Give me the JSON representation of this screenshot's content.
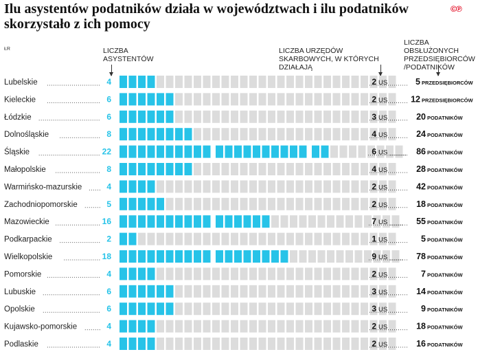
{
  "title": "Ilu asystentów podatników działa w województwach i ilu podatników skorzystało z ich pomocy",
  "source": "ŁR",
  "logo": "©℗",
  "headers": {
    "assistants": "LICZBA ASYSTENTÓW",
    "offices": "LICZBA URZĘDÓW SKARBOWYCH, W KTÓRYCH DZIAŁAJĄ",
    "served": "LICZBA OBSŁUŻONYCH PRZEDSIĘBIORCÓW /PODATNIKÓW"
  },
  "office_unit": "US",
  "colors": {
    "filled": "#27c3e8",
    "empty": "#dcdcdc",
    "number": "#27c3e8"
  },
  "chart_data": {
    "type": "table",
    "title": "Ilu asystentów podatników działa w województwach i ilu podatników skorzystało z ich pomocy",
    "columns": [
      "LICZBA ASYSTENTÓW",
      "LICZBA URZĘDÓW SKARBOWYCH, W KTÓRYCH DZIAŁAJĄ",
      "LICZBA OBSŁUŻONYCH PRZEDSIĘBIORCÓW /PODATNIKÓW"
    ],
    "rows": [
      {
        "region": "Lubelskie",
        "assistants": 4,
        "offices": 2,
        "served": 5,
        "served_unit": "PRZEDSIĘBIORCÓW",
        "groups": [
          4
        ]
      },
      {
        "region": "Kieleckie",
        "assistants": 6,
        "offices": 2,
        "served": 12,
        "served_unit": "PRZEDSIĘBIORCÓW",
        "groups": [
          6
        ]
      },
      {
        "region": "Łódzkie",
        "assistants": 6,
        "offices": 3,
        "served": 20,
        "served_unit": "PODATNIKÓW",
        "groups": [
          6
        ]
      },
      {
        "region": "Dolnośląskie",
        "assistants": 8,
        "offices": 4,
        "served": 24,
        "served_unit": "PODATNIKÓW",
        "groups": [
          8
        ]
      },
      {
        "region": "Śląskie",
        "assistants": 22,
        "offices": 6,
        "served": 86,
        "served_unit": "PODATNIKÓW",
        "groups": [
          10,
          10,
          2
        ]
      },
      {
        "region": "Małopolskie",
        "assistants": 8,
        "offices": 4,
        "served": 28,
        "served_unit": "PODATNIKÓW",
        "groups": [
          8
        ]
      },
      {
        "region": "Warmińsko-mazurskie",
        "assistants": 4,
        "offices": 2,
        "served": 42,
        "served_unit": "PODATNIKÓW",
        "groups": [
          4
        ]
      },
      {
        "region": "Zachodniopomorskie",
        "assistants": 5,
        "offices": 2,
        "served": 18,
        "served_unit": "PODATNIKÓW",
        "groups": [
          5
        ]
      },
      {
        "region": "Mazowieckie",
        "assistants": 16,
        "offices": 7,
        "served": 55,
        "served_unit": "PODATNIKÓW",
        "groups": [
          10,
          6
        ]
      },
      {
        "region": "Podkarpackie",
        "assistants": 2,
        "offices": 1,
        "served": 5,
        "served_unit": "PODATNIKÓW",
        "groups": [
          2
        ]
      },
      {
        "region": "Wielkopolskie",
        "assistants": 18,
        "offices": 9,
        "served": 78,
        "served_unit": "PODATNIKÓW",
        "groups": [
          10,
          8
        ]
      },
      {
        "region": "Pomorskie",
        "assistants": 4,
        "offices": 2,
        "served": 7,
        "served_unit": "PODATNIKÓW",
        "groups": [
          4
        ]
      },
      {
        "region": "Lubuskie",
        "assistants": 6,
        "offices": 3,
        "served": 14,
        "served_unit": "PODATNIKÓW",
        "groups": [
          6
        ]
      },
      {
        "region": "Opolskie",
        "assistants": 6,
        "offices": 3,
        "served": 9,
        "served_unit": "PODATNIKÓW",
        "groups": [
          6
        ]
      },
      {
        "region": "Kujawsko-pomorskie",
        "assistants": 4,
        "offices": 2,
        "served": 18,
        "served_unit": "PODATNIKÓW",
        "groups": [
          4
        ]
      },
      {
        "region": "Podlaskie",
        "assistants": 4,
        "offices": 2,
        "served": 16,
        "served_unit": "PODATNIKÓW",
        "groups": [
          4
        ]
      }
    ],
    "max_cells": 30
  }
}
